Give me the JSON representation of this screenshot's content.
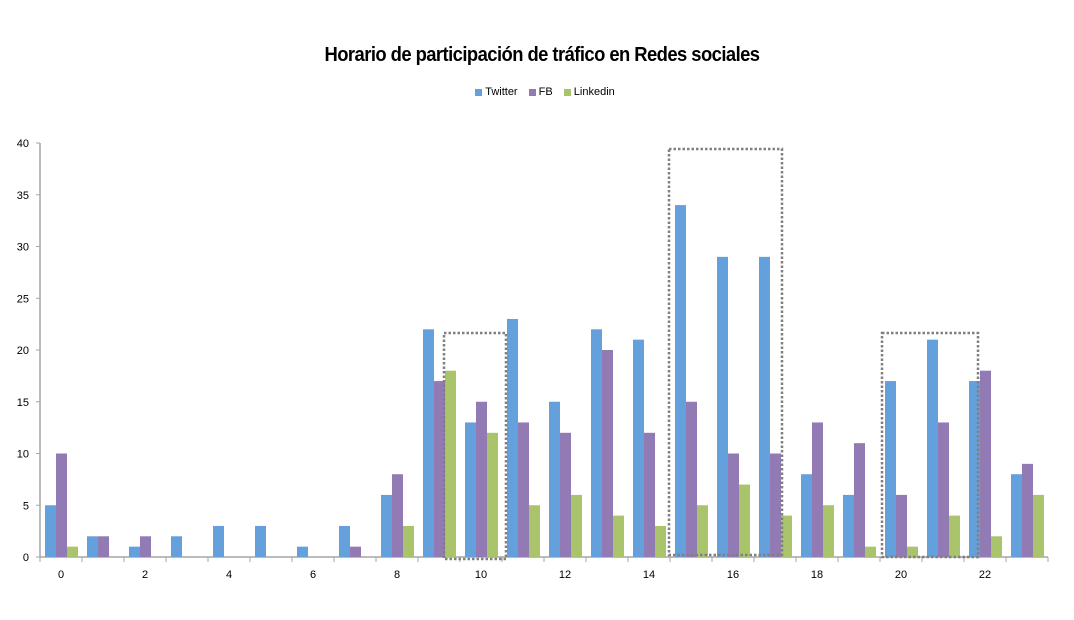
{
  "chart_data": {
    "type": "bar",
    "title": "Horario de participación de tráfico en Redes sociales",
    "xlabel": "",
    "ylabel": "",
    "categories": [
      0,
      1,
      2,
      3,
      4,
      5,
      6,
      7,
      8,
      9,
      10,
      11,
      12,
      13,
      14,
      15,
      16,
      17,
      18,
      19,
      20,
      21,
      22,
      23
    ],
    "x_tick_labels": [
      "0",
      "2",
      "4",
      "6",
      "8",
      "10",
      "12",
      "14",
      "16",
      "18",
      "20",
      "22"
    ],
    "y_tick_labels": [
      "0",
      "5",
      "10",
      "15",
      "20",
      "25",
      "30",
      "35",
      "40"
    ],
    "ylim": [
      0,
      40
    ],
    "grid": false,
    "legend_position": "top",
    "series": [
      {
        "name": "Twitter",
        "color": "#64a0db",
        "values": [
          5,
          2,
          1,
          2,
          3,
          3,
          1,
          3,
          6,
          22,
          13,
          23,
          15,
          22,
          21,
          34,
          29,
          29,
          8,
          6,
          17,
          21,
          17,
          8
        ]
      },
      {
        "name": "FB",
        "color": "#927bb4",
        "values": [
          10,
          2,
          2,
          0,
          0,
          0,
          0,
          1,
          8,
          17,
          15,
          13,
          12,
          20,
          12,
          15,
          10,
          10,
          13,
          11,
          6,
          13,
          18,
          9
        ]
      },
      {
        "name": "Linkedin",
        "color": "#a9c46b",
        "values": [
          1,
          0,
          0,
          0,
          0,
          0,
          0,
          0,
          3,
          18,
          12,
          5,
          6,
          4,
          3,
          5,
          7,
          4,
          5,
          1,
          1,
          4,
          2,
          6
        ]
      }
    ],
    "annotations": [
      {
        "type": "dotted-box",
        "hours": [
          9.6,
          11
        ]
      },
      {
        "type": "dotted-box",
        "hours": [
          15,
          17.6
        ]
      },
      {
        "type": "dotted-box",
        "hours": [
          20,
          22.3
        ]
      }
    ]
  }
}
